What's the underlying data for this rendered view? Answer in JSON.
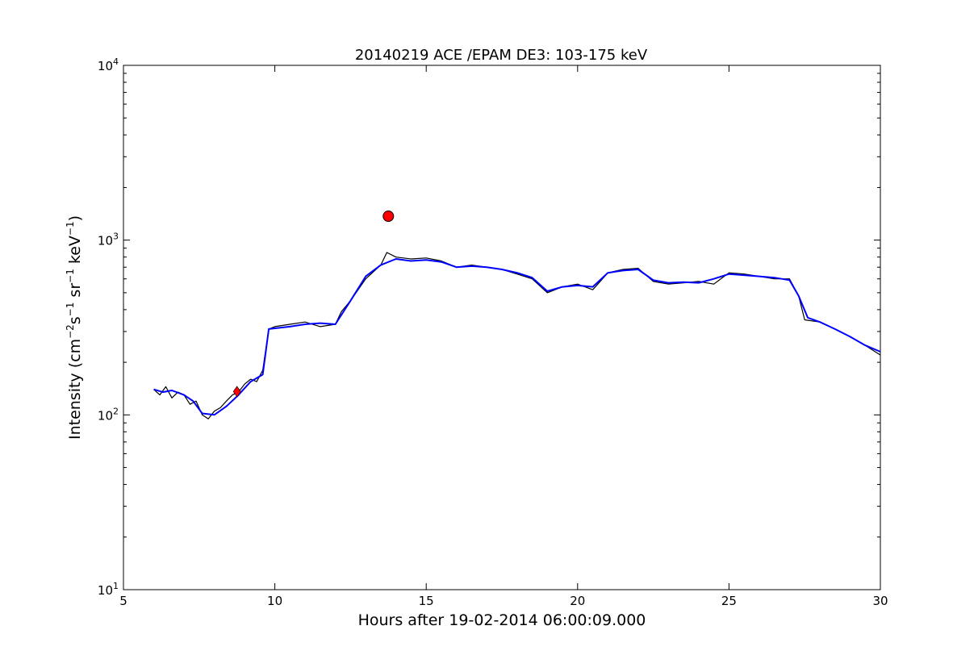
{
  "chart_data": {
    "type": "line",
    "title": "20140219 ACE /EPAM DE3: 103-175 keV",
    "xlabel": "Hours after 19-02-2014 06:00:09.000",
    "ylabel": {
      "lead": "Intensity (cm",
      "sup1": "−2",
      "mid1": "s",
      "sup2": "−1",
      "mid2": " sr",
      "sup3": "−1",
      "mid3": " keV",
      "sup4": "−1",
      "tail": ")"
    },
    "xlim": [
      5,
      30
    ],
    "ylim": [
      10,
      10000
    ],
    "yscale": "log",
    "grid": false,
    "x_ticks": [
      5,
      10,
      15,
      20,
      25,
      30
    ],
    "x_tick_labels": [
      "5",
      "10",
      "15",
      "20",
      "25",
      "30"
    ],
    "y_ticks": [
      10,
      100,
      1000,
      10000
    ],
    "y_tick_labels": [
      {
        "base": "10",
        "exp": "1"
      },
      {
        "base": "10",
        "exp": "2"
      },
      {
        "base": "10",
        "exp": "3"
      },
      {
        "base": "10",
        "exp": "4"
      }
    ],
    "series": [
      {
        "style": "raw",
        "color": "#000000",
        "x": [
          6.0,
          6.2,
          6.4,
          6.6,
          6.8,
          7.0,
          7.2,
          7.4,
          7.6,
          7.8,
          8.0,
          8.2,
          8.4,
          8.6,
          8.8,
          9.0,
          9.2,
          9.4,
          9.6,
          9.8,
          10.0,
          10.5,
          11.0,
          11.5,
          12.0,
          12.2,
          12.5,
          13.0,
          13.5,
          13.7,
          14.0,
          14.5,
          15.0,
          15.5,
          16.0,
          16.5,
          17.0,
          17.5,
          18.0,
          18.5,
          19.0,
          19.5,
          20.0,
          20.5,
          21.0,
          21.5,
          22.0,
          22.5,
          23.0,
          23.5,
          24.0,
          24.5,
          25.0,
          25.5,
          26.0,
          26.5,
          27.0,
          27.3,
          27.5,
          28.0,
          28.5,
          29.0,
          29.5,
          30.0
        ],
        "y": [
          140,
          130,
          145,
          125,
          135,
          130,
          115,
          120,
          100,
          95,
          105,
          110,
          120,
          130,
          135,
          150,
          160,
          155,
          180,
          310,
          320,
          330,
          340,
          320,
          330,
          390,
          450,
          600,
          720,
          850,
          800,
          780,
          790,
          760,
          700,
          720,
          700,
          680,
          640,
          600,
          500,
          540,
          560,
          520,
          650,
          680,
          690,
          580,
          560,
          570,
          580,
          560,
          650,
          640,
          620,
          600,
          600,
          480,
          350,
          340,
          310,
          280,
          250,
          220
        ]
      },
      {
        "style": "smoothed",
        "color": "#0000ff",
        "x": [
          6.0,
          6.3,
          6.6,
          7.0,
          7.3,
          7.6,
          8.0,
          8.4,
          8.8,
          9.2,
          9.6,
          9.8,
          10.5,
          11.0,
          11.5,
          12.0,
          12.5,
          13.0,
          13.5,
          14.0,
          14.5,
          15.0,
          15.5,
          16.0,
          16.5,
          17.0,
          17.5,
          18.0,
          18.5,
          19.0,
          19.5,
          20.0,
          20.5,
          21.0,
          21.5,
          22.0,
          22.5,
          23.0,
          23.5,
          24.0,
          24.5,
          25.0,
          25.5,
          26.0,
          26.5,
          27.0,
          27.3,
          27.6,
          28.0,
          28.5,
          29.0,
          29.5,
          30.0
        ],
        "y": [
          140,
          135,
          138,
          130,
          120,
          102,
          100,
          112,
          130,
          155,
          170,
          310,
          320,
          330,
          335,
          330,
          450,
          620,
          720,
          780,
          760,
          770,
          750,
          700,
          710,
          700,
          680,
          650,
          610,
          510,
          540,
          550,
          540,
          650,
          670,
          680,
          590,
          570,
          575,
          570,
          600,
          640,
          630,
          620,
          610,
          590,
          480,
          360,
          340,
          310,
          280,
          250,
          230
        ]
      }
    ],
    "markers": [
      {
        "shape": "diamond",
        "color": "#ff0000",
        "x": 8.75,
        "y": 136
      },
      {
        "shape": "circle",
        "color": "#ff0000",
        "x": 13.75,
        "y": 1370
      }
    ]
  }
}
